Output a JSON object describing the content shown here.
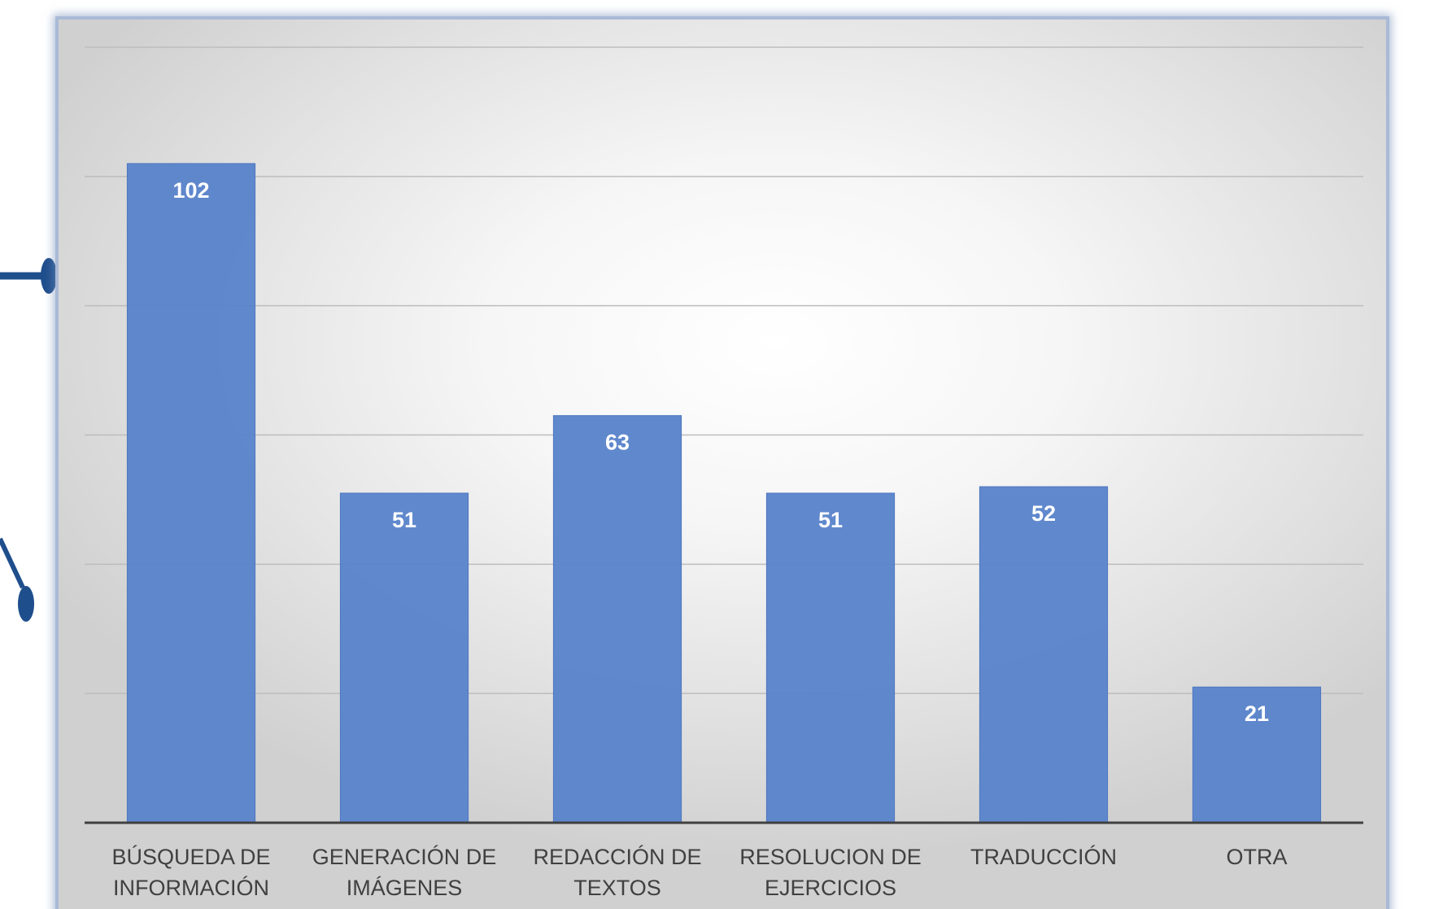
{
  "colors": {
    "bar": "#5b84cb",
    "bar_edge": "#4f77c0",
    "gridline": "#bdbdbd",
    "axis": "#404040",
    "connector": "#1f4e8c",
    "panel_border": "#a9bad6"
  },
  "chart_data": {
    "type": "bar",
    "title": "",
    "xlabel": "",
    "ylabel": "",
    "categories": [
      [
        "BÚSQUEDA DE",
        "INFORMACIÓN"
      ],
      [
        "GENERACIÓN DE",
        "IMÁGENES"
      ],
      [
        "REDACCIÓN DE",
        "TEXTOS"
      ],
      [
        "RESOLUCION DE",
        "EJERCICIOS"
      ],
      [
        "TRADUCCIÓN"
      ],
      [
        "OTRA"
      ]
    ],
    "values": [
      102,
      51,
      63,
      51,
      52,
      21
    ],
    "ylim": [
      0,
      120
    ],
    "grid_step": 20,
    "grid": true,
    "data_labels": true,
    "legend": "none",
    "y_tick_labels_visible": false
  }
}
